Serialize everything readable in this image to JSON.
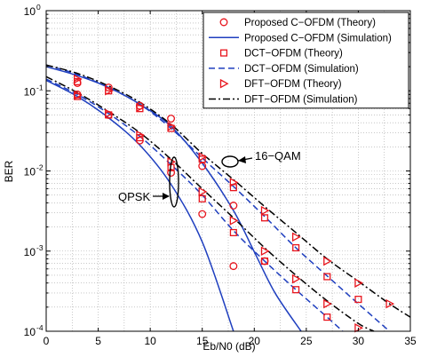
{
  "chart_data": {
    "type": "line",
    "title": "",
    "xlabel": "Eb/N0 (dB)",
    "ylabel": "BER",
    "xlim": [
      0,
      35
    ],
    "ylim": [
      0.0001,
      1
    ],
    "yscale": "log",
    "grid": true,
    "legend_position": "top-right",
    "xticks": [
      {
        "value": 0,
        "label": "0"
      },
      {
        "value": 5,
        "label": "5"
      },
      {
        "value": 10,
        "label": "10"
      },
      {
        "value": 15,
        "label": "15"
      },
      {
        "value": 20,
        "label": "20"
      },
      {
        "value": 25,
        "label": "25"
      },
      {
        "value": 30,
        "label": "30"
      },
      {
        "value": 35,
        "label": "35"
      }
    ],
    "yticks": [
      {
        "value": 1,
        "label": "10",
        "exp": "0"
      },
      {
        "value": 0.1,
        "label": "10",
        "exp": "-1"
      },
      {
        "value": 0.01,
        "label": "10",
        "exp": "-2"
      },
      {
        "value": 0.001,
        "label": "10",
        "exp": "-3"
      },
      {
        "value": 0.0001,
        "label": "10",
        "exp": "-4"
      }
    ],
    "series": [
      {
        "name": "Proposed C−OFDM (Theory)",
        "kind": "marker",
        "marker": "circle",
        "color": "#e8141c",
        "groups": [
          {
            "x": [
              3,
              6,
              9,
              12,
              15,
              18
            ],
            "y": [
              0.09,
              0.05,
              0.024,
              0.0095,
              0.0029,
              0.00065
            ]
          },
          {
            "x": [
              3,
              6,
              9,
              12,
              15,
              18,
              21
            ],
            "y": [
              0.125,
              0.11,
              0.065,
              0.045,
              0.0115,
              0.0037,
              0.00075
            ]
          }
        ]
      },
      {
        "name": "Proposed C−OFDM (Simulation)",
        "kind": "line",
        "dash": "solid",
        "color": "#1f3fbf",
        "groups": [
          {
            "x": [
              0,
              3,
              6,
              9,
              12,
              15,
              18
            ],
            "y": [
              0.135,
              0.085,
              0.046,
              0.021,
              0.0068,
              0.0013,
              0.0001
            ]
          },
          {
            "x": [
              0,
              3,
              6,
              9,
              12,
              15,
              18,
              20,
              22,
              24.5
            ],
            "y": [
              0.2,
              0.155,
              0.11,
              0.068,
              0.036,
              0.0125,
              0.0032,
              0.00098,
              0.0003,
              0.0001
            ]
          }
        ]
      },
      {
        "name": "DCT−OFDM (Theory)",
        "kind": "marker",
        "marker": "square",
        "color": "#e8141c",
        "groups": [
          {
            "x": [
              3,
              6,
              9,
              12,
              15,
              18,
              21,
              24,
              27
            ],
            "y": [
              0.085,
              0.05,
              0.026,
              0.011,
              0.0045,
              0.0017,
              0.00075,
              0.00033,
              0.00015
            ]
          },
          {
            "x": [
              3,
              6,
              9,
              12,
              15,
              18,
              21,
              24,
              27,
              30
            ],
            "y": [
              0.13,
              0.1,
              0.06,
              0.034,
              0.014,
              0.0062,
              0.0026,
              0.0011,
              0.00048,
              0.00025
            ]
          }
        ]
      },
      {
        "name": "DCT−OFDM (Simulation)",
        "kind": "line",
        "dash": "dash",
        "color": "#1f3fbf",
        "groups": [
          {
            "x": [
              0,
              3,
              6,
              9,
              12,
              15,
              18,
              21,
              24,
              27,
              28.5
            ],
            "y": [
              0.14,
              0.09,
              0.052,
              0.027,
              0.012,
              0.005,
              0.0018,
              0.00075,
              0.00033,
              0.00015,
              0.0001
            ]
          },
          {
            "x": [
              0,
              3,
              6,
              9,
              12,
              15,
              18,
              21,
              24,
              27,
              30,
              33
            ],
            "y": [
              0.21,
              0.16,
              0.11,
              0.068,
              0.034,
              0.0145,
              0.0064,
              0.0027,
              0.0011,
              0.00049,
              0.00022,
              0.0001
            ]
          }
        ]
      },
      {
        "name": "DFT−OFDM (Theory)",
        "kind": "marker",
        "marker": "triangle-right",
        "color": "#e8141c",
        "groups": [
          {
            "x": [
              3,
              6,
              9,
              12,
              15,
              18,
              21,
              24,
              27,
              30
            ],
            "y": [
              0.088,
              0.052,
              0.028,
              0.013,
              0.0055,
              0.0024,
              0.001,
              0.00045,
              0.00022,
              0.00011
            ]
          },
          {
            "x": [
              3,
              6,
              9,
              12,
              15,
              18,
              21,
              24,
              27,
              30,
              33
            ],
            "y": [
              0.14,
              0.1,
              0.062,
              0.036,
              0.015,
              0.0072,
              0.0032,
              0.0015,
              0.00075,
              0.0004,
              0.00022
            ]
          }
        ]
      },
      {
        "name": "DFT−OFDM (Simulation)",
        "kind": "line",
        "dash": "dashdot",
        "color": "#000000",
        "groups": [
          {
            "x": [
              0,
              3,
              6,
              9,
              12,
              15,
              18,
              21,
              24,
              27,
              30,
              31.5
            ],
            "y": [
              0.15,
              0.095,
              0.055,
              0.03,
              0.014,
              0.006,
              0.0026,
              0.0011,
              0.0005,
              0.00024,
              0.000125,
              0.0001
            ]
          },
          {
            "x": [
              0,
              3,
              6,
              9,
              12,
              15,
              18,
              21,
              24,
              27,
              30,
              33,
              35
            ],
            "y": [
              0.21,
              0.165,
              0.115,
              0.072,
              0.038,
              0.0165,
              0.0078,
              0.0036,
              0.0017,
              0.0008,
              0.00042,
              0.00022,
              0.00015
            ]
          }
        ]
      }
    ],
    "annotations": [
      {
        "text": "16−QAM"
      },
      {
        "text": "QPSK"
      }
    ]
  }
}
